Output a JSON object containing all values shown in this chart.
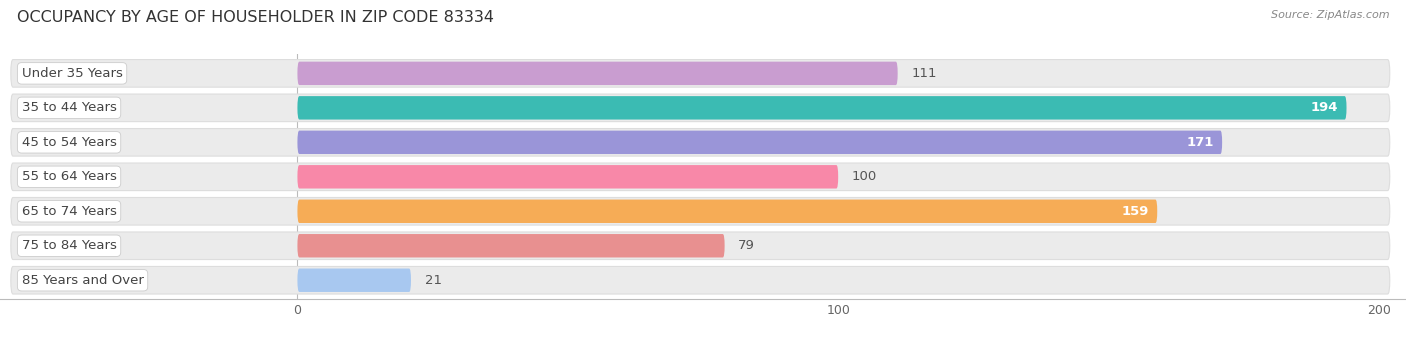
{
  "title": "OCCUPANCY BY AGE OF HOUSEHOLDER IN ZIP CODE 83334",
  "source": "Source: ZipAtlas.com",
  "categories": [
    "Under 35 Years",
    "35 to 44 Years",
    "45 to 54 Years",
    "55 to 64 Years",
    "65 to 74 Years",
    "75 to 84 Years",
    "85 Years and Over"
  ],
  "values": [
    111,
    194,
    171,
    100,
    159,
    79,
    21
  ],
  "bar_colors": [
    "#c99dd0",
    "#3bbbb3",
    "#9a95d8",
    "#f888a8",
    "#f6ac56",
    "#e89090",
    "#a8c8f0"
  ],
  "value_colors": [
    "#666666",
    "#ffffff",
    "#ffffff",
    "#666666",
    "#ffffff",
    "#666666",
    "#666666"
  ],
  "xlim_left": -55,
  "xlim_right": 205,
  "xticks": [
    0,
    100,
    200
  ],
  "title_fontsize": 11.5,
  "label_fontsize": 9.5,
  "value_fontsize": 9.5,
  "background_color": "#ffffff",
  "plot_bg_color": "#ffffff",
  "bar_bg_color": "#ebebeb",
  "bar_bg_border": "#dddddd"
}
